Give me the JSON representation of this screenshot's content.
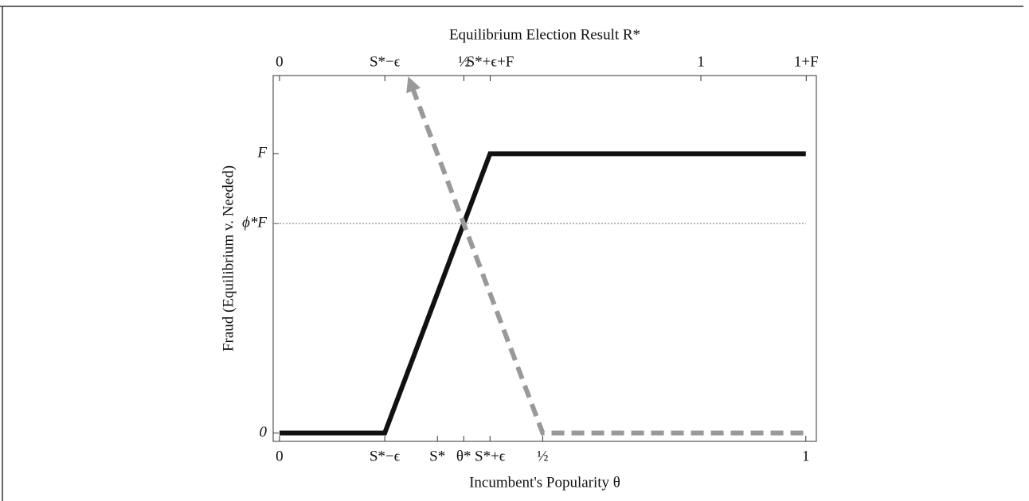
{
  "chart_data": {
    "type": "line",
    "xlabel": "Incumbent's Popularity θ",
    "ylabel": "Fraud (Equilibrium v. Needed)",
    "x2label": "Equilibrium Election Result R*",
    "xlim": [
      -0.012,
      1.02
    ],
    "xticks": [
      0,
      {
        "value": 0.2,
        "label": "S*−ϵ"
      },
      {
        "value": 0.3,
        "label": "S*"
      },
      {
        "value": 0.35,
        "label": "θ*"
      },
      {
        "value": 0.4,
        "label": "S*+ϵ"
      },
      {
        "value": 0.5,
        "label": "½"
      },
      1
    ],
    "x2lim": [
      -0.015,
      1.274
    ],
    "x2ticks": [
      0,
      {
        "value": 0.25,
        "label": "S*−ϵ"
      },
      {
        "value": 0.4375,
        "label": "½"
      },
      {
        "value": 0.5,
        "label": "S*+ϵ+F"
      },
      1,
      {
        "value": 1.25,
        "label": "1+F"
      }
    ],
    "ylim": [
      -0.03,
      1.28
    ],
    "yticks": [
      0,
      {
        "value": 0.75,
        "label": "ϕ*F"
      },
      {
        "value": 1,
        "label": "F"
      }
    ],
    "reference_line": 0.75,
    "series": [
      {
        "color": "#111111",
        "dash": false,
        "x": [
          0,
          0.2,
          0.4,
          1
        ],
        "values": [
          0,
          0,
          1,
          1
        ]
      },
      {
        "color": "#999999",
        "dash": true,
        "arrow": true,
        "x": [
          0.2526,
          0.5,
          1
        ],
        "values": [
          1.236,
          0,
          0
        ]
      }
    ]
  }
}
